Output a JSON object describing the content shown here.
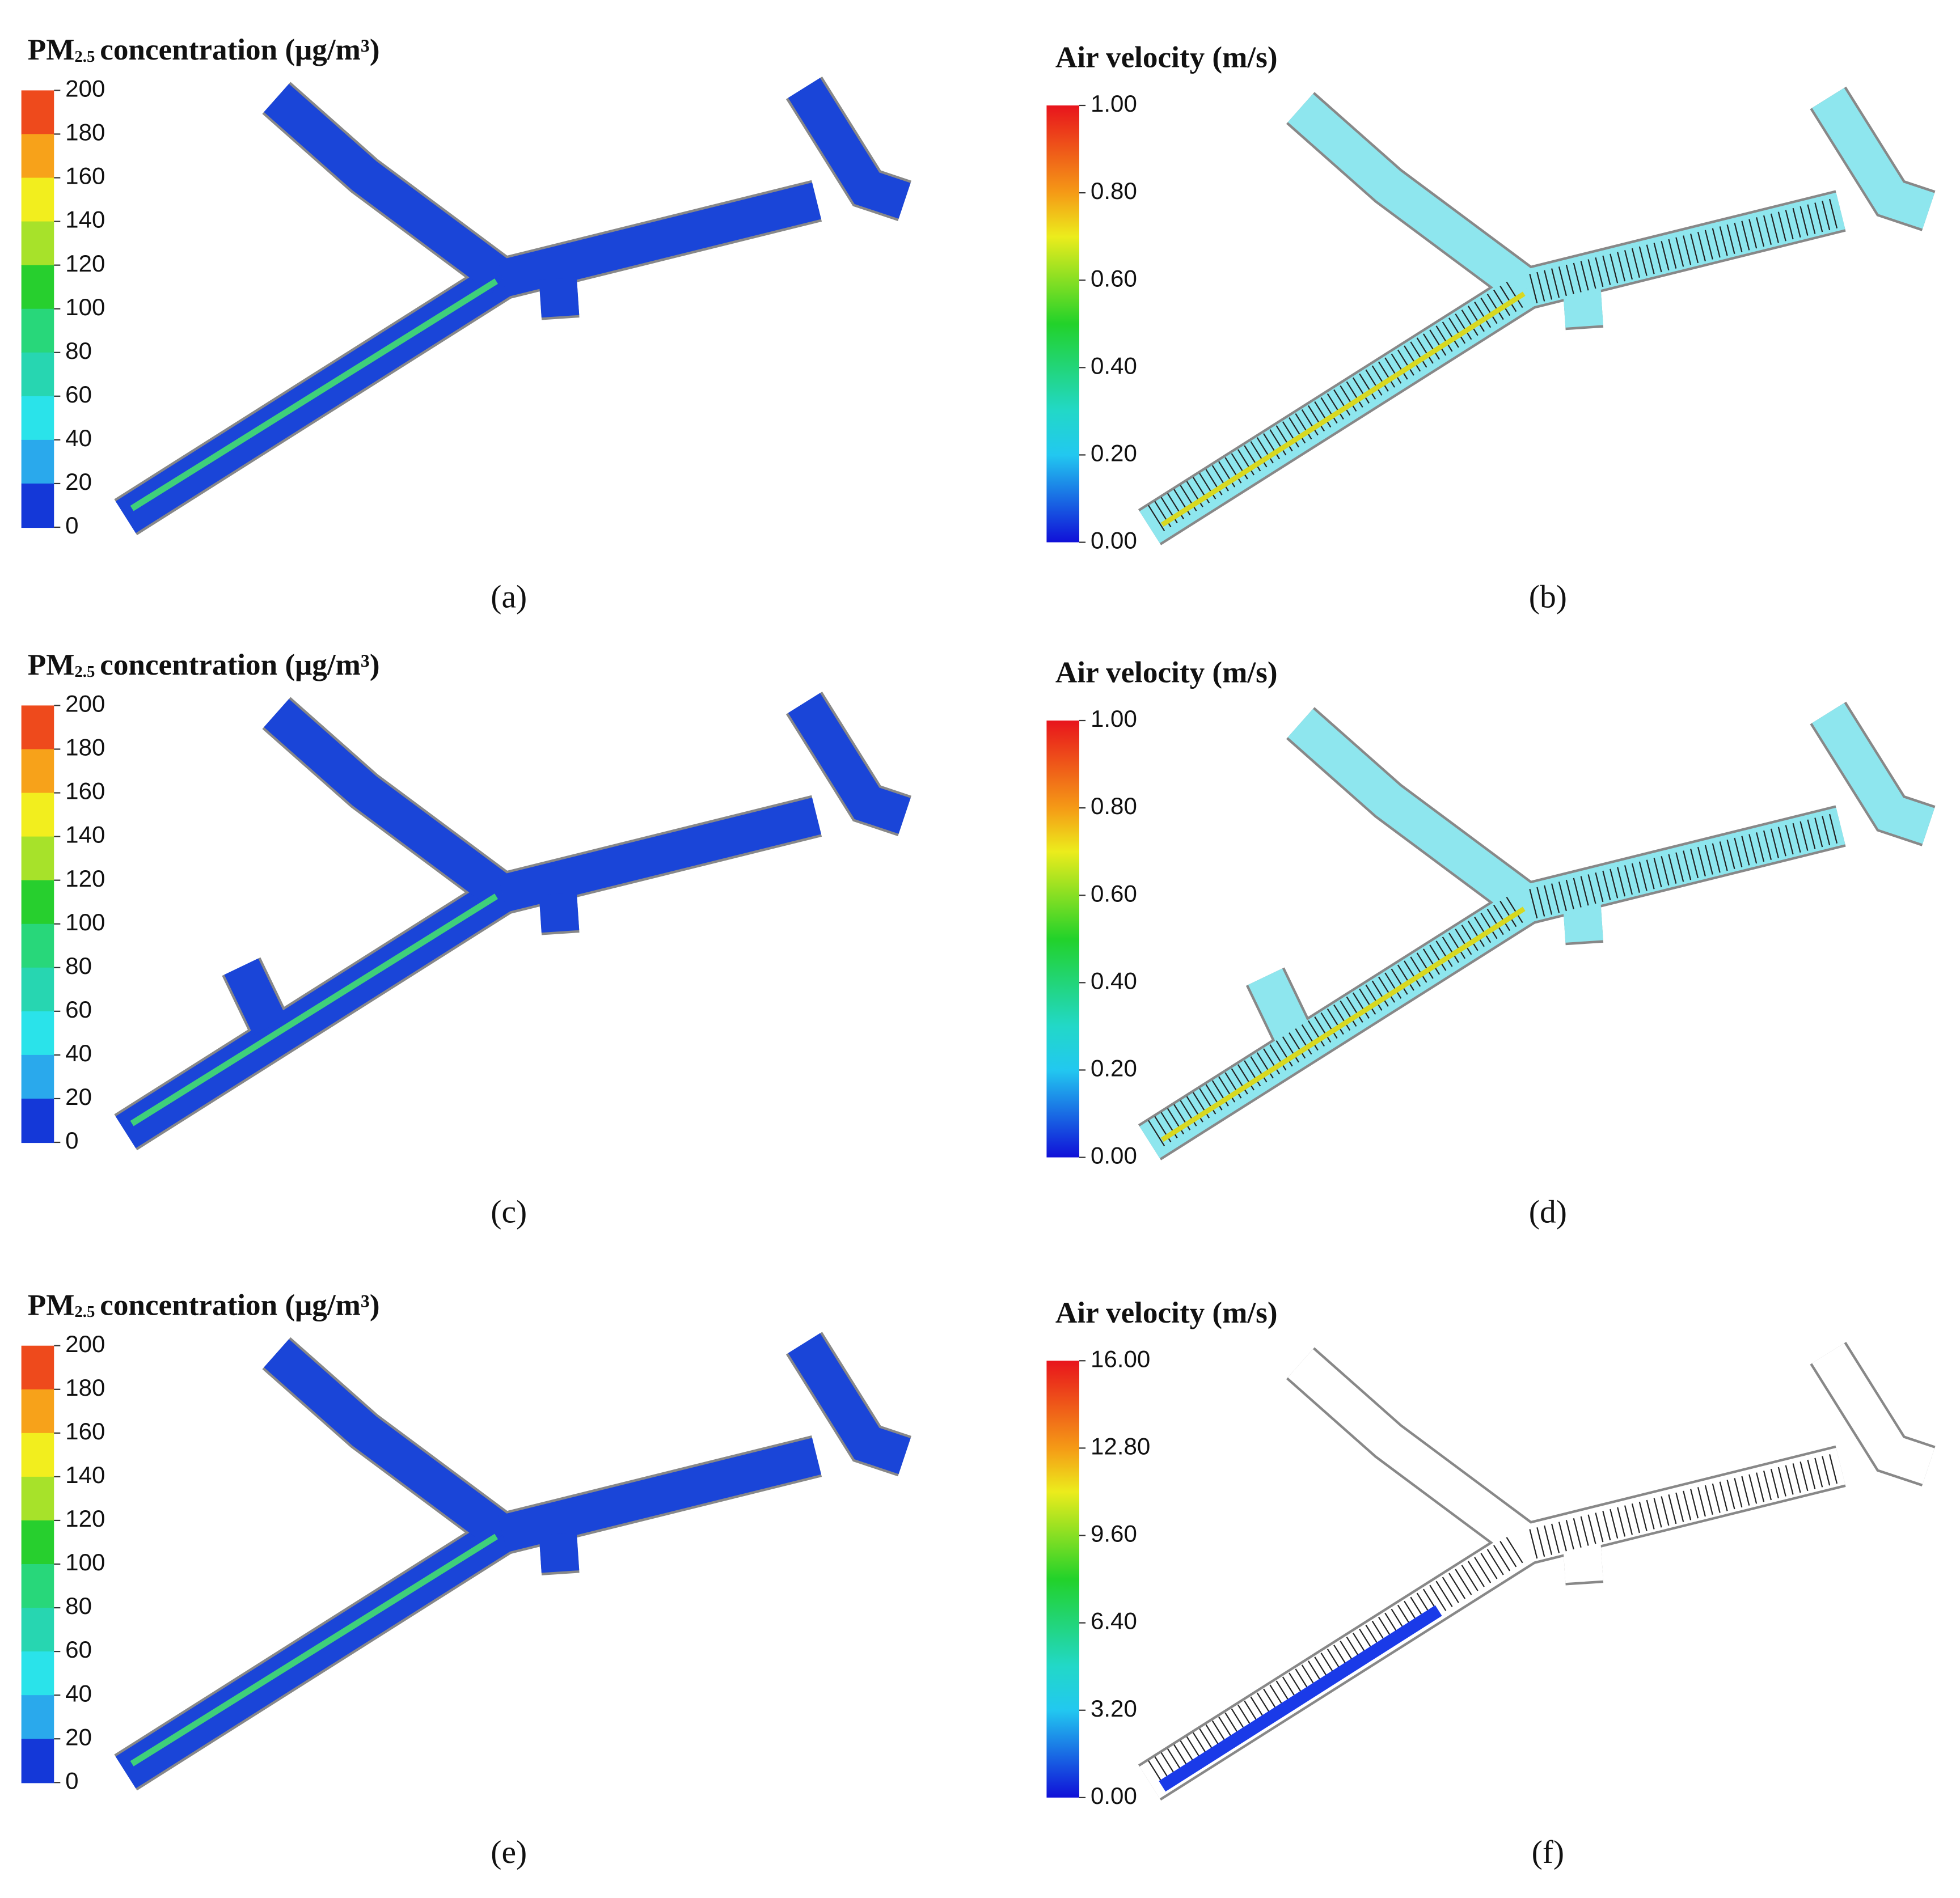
{
  "panels": [
    {
      "title": {
        "prefix": "PM",
        "subscript": "2.5",
        "text": "concentration (μg/m³)"
      },
      "colorbar_ticks": [
        200,
        180,
        160,
        140,
        120,
        100,
        80,
        60,
        40,
        20,
        0
      ],
      "caption": "(a)"
    },
    {
      "title": "Air velocity  (m/s)",
      "colorbar_ticks": [
        "1.00",
        "0.80",
        "0.60",
        "0.40",
        "0.20",
        "0.00"
      ],
      "caption": "(b)"
    },
    {
      "title": {
        "prefix": "PM",
        "subscript": "2.5",
        "text": "concentration (μg/m³)"
      },
      "colorbar_ticks": [
        200,
        180,
        160,
        140,
        120,
        100,
        80,
        60,
        40,
        20,
        0
      ],
      "caption": "(c)"
    },
    {
      "title": "Air velocity  (m/s)",
      "colorbar_ticks": [
        "1.00",
        "0.80",
        "0.60",
        "0.40",
        "0.20",
        "0.00"
      ],
      "caption": "(d)"
    },
    {
      "title": {
        "prefix": "PM",
        "subscript": "2.5",
        "text": "concentration (μg/m³)"
      },
      "colorbar_ticks": [
        200,
        180,
        160,
        140,
        120,
        100,
        80,
        60,
        40,
        20,
        0
      ],
      "caption": "(e)"
    },
    {
      "title": "Air velocity  (m/s)",
      "colorbar_ticks": [
        "16.00",
        "12.80",
        "9.60",
        "6.40",
        "3.20",
        "0.00"
      ],
      "caption": "(f)"
    }
  ]
}
